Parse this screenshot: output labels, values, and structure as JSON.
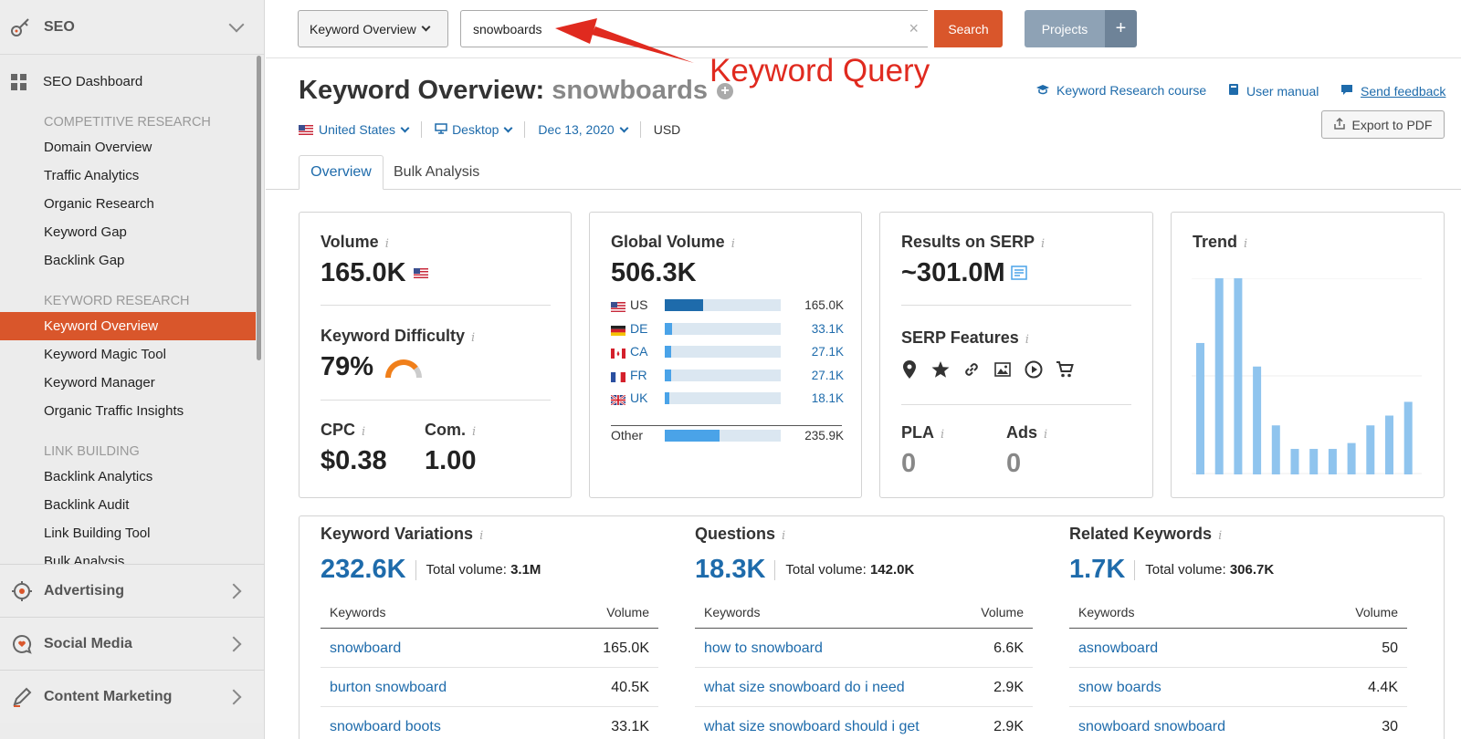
{
  "sidebar": {
    "header": "SEO",
    "dashboard": "SEO Dashboard",
    "sections": [
      {
        "title": "COMPETITIVE RESEARCH",
        "items": [
          "Domain Overview",
          "Traffic Analytics",
          "Organic Research",
          "Keyword Gap",
          "Backlink Gap"
        ]
      },
      {
        "title": "KEYWORD RESEARCH",
        "items": [
          "Keyword Overview",
          "Keyword Magic Tool",
          "Keyword Manager",
          "Organic Traffic Insights"
        ]
      },
      {
        "title": "LINK BUILDING",
        "items": [
          "Backlink Analytics",
          "Backlink Audit",
          "Link Building Tool",
          "Bulk Analysis"
        ]
      }
    ],
    "active_item": "Keyword Overview",
    "categories": [
      "Advertising",
      "Social Media",
      "Content Marketing"
    ]
  },
  "topbar": {
    "tool_select": "Keyword Overview",
    "search_value": "snowboards",
    "clear_glyph": "×",
    "search_button": "Search",
    "projects_button": "Projects",
    "plus_glyph": "+"
  },
  "annotation": {
    "label": "Keyword Query",
    "color": "#e02a1f"
  },
  "heading": {
    "prefix": "Keyword Overview:",
    "keyword": "snowboards",
    "links": [
      "Keyword Research course",
      "User manual",
      "Send feedback"
    ],
    "export": "Export to PDF"
  },
  "filters": {
    "country": "United States",
    "device": "Desktop",
    "date": "Dec 13, 2020",
    "currency": "USD"
  },
  "tabs": [
    "Overview",
    "Bulk Analysis"
  ],
  "cards": {
    "volume": {
      "label": "Volume",
      "value": "165.0K"
    },
    "difficulty": {
      "label": "Keyword Difficulty",
      "value": "79%",
      "percent": 79
    },
    "cpc": {
      "label": "CPC",
      "value": "$0.38"
    },
    "com": {
      "label": "Com.",
      "value": "1.00"
    },
    "global": {
      "label": "Global Volume",
      "value": "506.3K",
      "rows": [
        {
          "country": "US",
          "value": "165.0K",
          "share": 0.33
        },
        {
          "country": "DE",
          "value": "33.1K",
          "share": 0.065
        },
        {
          "country": "CA",
          "value": "27.1K",
          "share": 0.054
        },
        {
          "country": "FR",
          "value": "27.1K",
          "share": 0.054
        },
        {
          "country": "UK",
          "value": "18.1K",
          "share": 0.036
        }
      ],
      "other": {
        "label": "Other",
        "value": "235.9K",
        "share": 0.47
      }
    },
    "serp": {
      "label": "Results on SERP",
      "value": "~301.0M"
    },
    "features": {
      "label": "SERP Features",
      "icons": [
        "map-pin-icon",
        "star-icon",
        "link-icon",
        "image-icon",
        "video-icon",
        "shopping-cart-icon"
      ]
    },
    "pla": {
      "label": "PLA",
      "value": "0"
    },
    "ads": {
      "label": "Ads",
      "value": "0"
    },
    "trend": {
      "label": "Trend",
      "values": [
        0.67,
        1.0,
        1.0,
        0.55,
        0.25,
        0.13,
        0.13,
        0.13,
        0.16,
        0.25,
        0.3,
        0.37
      ]
    }
  },
  "bottom": {
    "columns": [
      {
        "title": "Keyword Variations",
        "count": "232.6K",
        "total_label": "Total volume:",
        "total": "3.1M",
        "rows": [
          {
            "k": "snowboard",
            "v": "165.0K"
          },
          {
            "k": "burton snowboard",
            "v": "40.5K"
          },
          {
            "k": "snowboard boots",
            "v": "33.1K"
          }
        ]
      },
      {
        "title": "Questions",
        "count": "18.3K",
        "total_label": "Total volume:",
        "total": "142.0K",
        "rows": [
          {
            "k": "how to snowboard",
            "v": "6.6K"
          },
          {
            "k": "what size snowboard do i need",
            "v": "2.9K"
          },
          {
            "k": "what size snowboard should i get",
            "v": "2.9K"
          }
        ]
      },
      {
        "title": "Related Keywords",
        "count": "1.7K",
        "total_label": "Total volume:",
        "total": "306.7K",
        "rows": [
          {
            "k": "asnowboard",
            "v": "50"
          },
          {
            "k": "snow boards",
            "v": "4.4K"
          },
          {
            "k": "snowboard snowboard",
            "v": "30"
          }
        ]
      }
    ],
    "col_keywords": "Keywords",
    "col_volume": "Volume"
  },
  "colors": {
    "accent": "#d9562b",
    "link": "#1e6bab",
    "bar": "#4aa3e8",
    "trend": "#8fc4ee",
    "gauge": "#f07f1a"
  }
}
